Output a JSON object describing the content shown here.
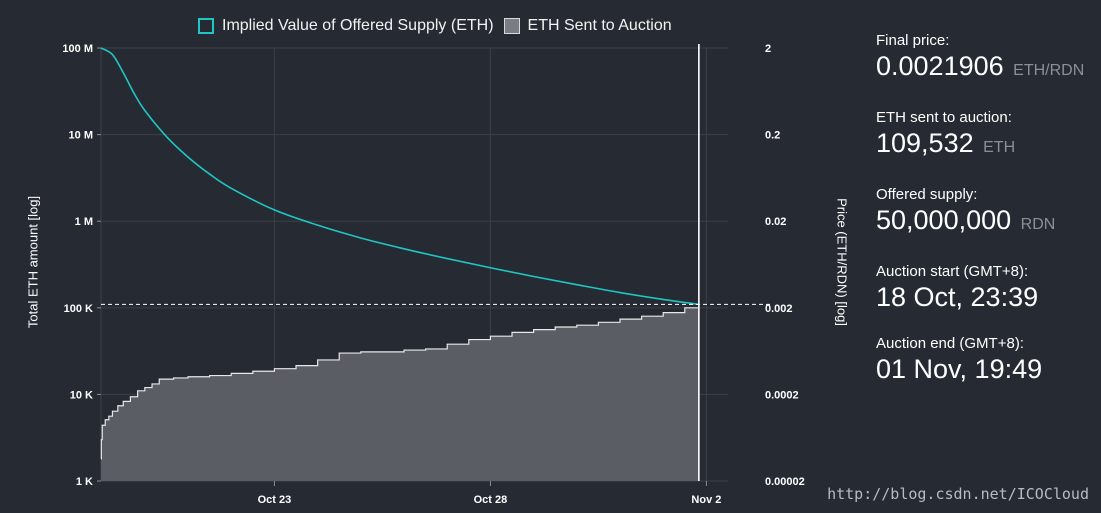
{
  "legend": {
    "line_label": "Implied Value of Offered Supply (ETH)",
    "area_label": "ETH Sent to Auction"
  },
  "colors": {
    "background": "#262a33",
    "line": "#1fc6c4",
    "area_fill": "#5a5d63",
    "area_stroke": "#e8e8e8",
    "grid": "#3c4049"
  },
  "stats": [
    {
      "label": "Final price:",
      "value": "0.0021906",
      "unit": "ETH/RDN"
    },
    {
      "label": "ETH sent to auction:",
      "value": "109,532",
      "unit": "ETH"
    },
    {
      "label": "Offered supply:",
      "value": "50,000,000",
      "unit": "RDN"
    },
    {
      "label": "Auction start (GMT+8):",
      "value": "18 Oct, 23:39",
      "unit": ""
    },
    {
      "label": "Auction end (GMT+8):",
      "value": "01 Nov, 19:49",
      "unit": ""
    }
  ],
  "watermark": "http://blog.csdn.net/ICOCloud",
  "chart_data": {
    "type": "line",
    "title": "",
    "xlabel": "",
    "ylabel": "Total ETH amount [log]",
    "y2label": "Price (ETH/RDN) [log]",
    "yscale": "log",
    "ylim": [
      1000,
      100000000
    ],
    "y2lim": [
      2e-05,
      2
    ],
    "xlim": [
      "2017-10-18T23:39",
      "2017-11-02T12:00"
    ],
    "x_ticks": [
      {
        "label": "Oct 23",
        "date": "2017-10-23T00:00"
      },
      {
        "label": "Oct 28",
        "date": "2017-10-28T00:00"
      },
      {
        "label": "Nov 2",
        "date": "2017-11-02T00:00"
      }
    ],
    "y_ticks_left": [
      {
        "value": 1000,
        "label": "1 K"
      },
      {
        "value": 10000,
        "label": "10 K"
      },
      {
        "value": 100000,
        "label": "100 K"
      },
      {
        "value": 1000000,
        "label": "1 M"
      },
      {
        "value": 10000000,
        "label": "10 M"
      },
      {
        "value": 100000000,
        "label": "100 M"
      }
    ],
    "y_ticks_right": [
      {
        "value": 2e-05,
        "label": "0.00002"
      },
      {
        "value": 0.0002,
        "label": "0.0002"
      },
      {
        "value": 0.002,
        "label": "0.002"
      },
      {
        "value": 0.02,
        "label": "0.02"
      },
      {
        "value": 0.2,
        "label": "0.2"
      },
      {
        "value": 2,
        "label": "2"
      }
    ],
    "grid": true,
    "legend_position": "top",
    "auction_end": "2017-11-01T19:49",
    "final_value_line": 109532,
    "series": [
      {
        "name": "Implied Value of Offered Supply (ETH)",
        "type": "line",
        "points": [
          [
            "2017-10-18T23:39",
            100000000
          ],
          [
            "2017-10-19T06:00",
            84000000
          ],
          [
            "2017-10-19T12:00",
            52000000
          ],
          [
            "2017-10-19T18:00",
            30000000
          ],
          [
            "2017-10-20T00:00",
            19000000
          ],
          [
            "2017-10-20T12:00",
            9500000
          ],
          [
            "2017-10-21T00:00",
            5500000
          ],
          [
            "2017-10-21T12:00",
            3500000
          ],
          [
            "2017-10-22T00:00",
            2400000
          ],
          [
            "2017-10-23T00:00",
            1350000
          ],
          [
            "2017-10-24T00:00",
            900000
          ],
          [
            "2017-10-25T00:00",
            640000
          ],
          [
            "2017-10-26T00:00",
            480000
          ],
          [
            "2017-10-27T00:00",
            370000
          ],
          [
            "2017-10-28T00:00",
            290000
          ],
          [
            "2017-10-29T00:00",
            230000
          ],
          [
            "2017-10-30T00:00",
            185000
          ],
          [
            "2017-10-31T00:00",
            150000
          ],
          [
            "2017-11-01T00:00",
            125000
          ],
          [
            "2017-11-01T19:49",
            109532
          ]
        ]
      },
      {
        "name": "ETH Sent to Auction",
        "type": "area",
        "points": [
          [
            "2017-10-18T23:39",
            1800
          ],
          [
            "2017-10-18T23:50",
            3000
          ],
          [
            "2017-10-19T00:20",
            4400
          ],
          [
            "2017-10-19T02:00",
            5100
          ],
          [
            "2017-10-19T04:00",
            5600
          ],
          [
            "2017-10-19T06:00",
            6400
          ],
          [
            "2017-10-19T09:00",
            7400
          ],
          [
            "2017-10-19T12:00",
            8300
          ],
          [
            "2017-10-19T16:00",
            9400
          ],
          [
            "2017-10-19T20:00",
            11000
          ],
          [
            "2017-10-20T00:00",
            12000
          ],
          [
            "2017-10-20T04:00",
            13200
          ],
          [
            "2017-10-20T08:00",
            15000
          ],
          [
            "2017-10-20T16:00",
            15500
          ],
          [
            "2017-10-21T00:00",
            16000
          ],
          [
            "2017-10-21T12:00",
            16500
          ],
          [
            "2017-10-22T00:00",
            17500
          ],
          [
            "2017-10-22T12:00",
            18500
          ],
          [
            "2017-10-23T00:00",
            19800
          ],
          [
            "2017-10-23T12:00",
            21500
          ],
          [
            "2017-10-24T00:00",
            25000
          ],
          [
            "2017-10-24T12:00",
            30000
          ],
          [
            "2017-10-25T00:00",
            31000
          ],
          [
            "2017-10-26T00:00",
            32500
          ],
          [
            "2017-10-26T12:00",
            33500
          ],
          [
            "2017-10-27T00:00",
            38000
          ],
          [
            "2017-10-27T12:00",
            43000
          ],
          [
            "2017-10-28T00:00",
            47000
          ],
          [
            "2017-10-28T12:00",
            52000
          ],
          [
            "2017-10-29T00:00",
            56000
          ],
          [
            "2017-10-29T12:00",
            60000
          ],
          [
            "2017-10-30T00:00",
            63000
          ],
          [
            "2017-10-30T12:00",
            68000
          ],
          [
            "2017-10-31T00:00",
            74000
          ],
          [
            "2017-10-31T12:00",
            80000
          ],
          [
            "2017-11-01T00:00",
            88000
          ],
          [
            "2017-11-01T12:00",
            100000
          ],
          [
            "2017-11-01T19:49",
            109532
          ]
        ]
      }
    ]
  }
}
